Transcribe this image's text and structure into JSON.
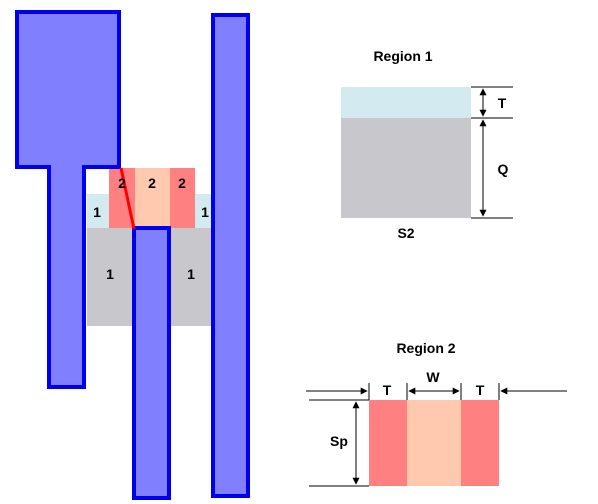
{
  "labels": {
    "one": "1",
    "two": "2",
    "region1_title": "Region 1",
    "region2_title": "Region 2",
    "t": "T",
    "q": "Q",
    "s2": "S2",
    "w": "W",
    "sp": "Sp"
  },
  "colors": {
    "electrode_fill": "#8080ff",
    "electrode_stroke": "#0000ee",
    "light_blue": "#d2eaf0",
    "gray": "#c8c7cc",
    "red": "#ff8080",
    "peach": "#ffc9b0",
    "red_line": "#ff0000",
    "black": "#000000"
  }
}
